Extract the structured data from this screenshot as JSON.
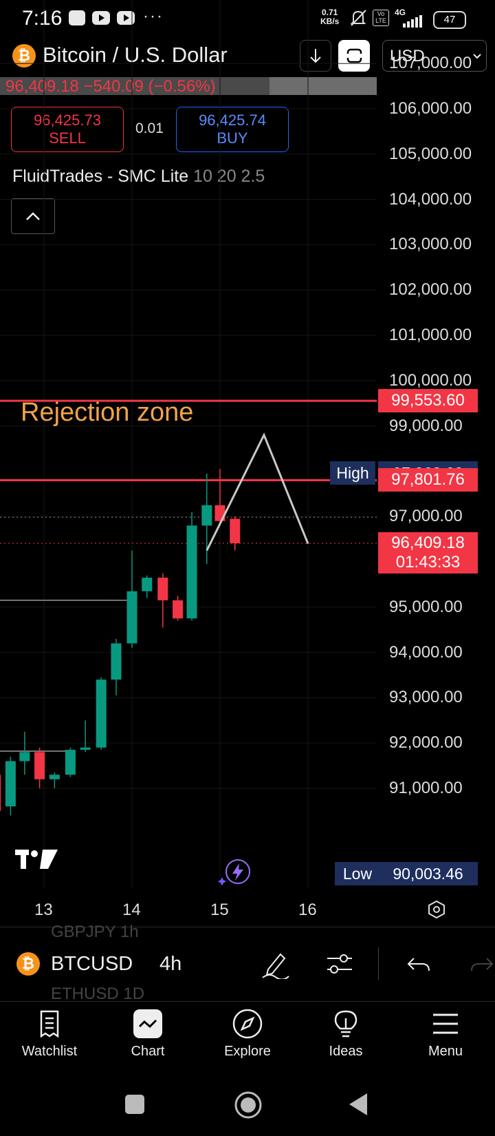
{
  "status_bar": {
    "time": "7:16",
    "dots": "···",
    "net_speed_value": "0.71",
    "net_speed_unit": "KB/s",
    "network": "4G",
    "battery": "47"
  },
  "header": {
    "title": "Bitcoin / U.S. Dollar",
    "currency": "USD",
    "ticker_line": "96,409.18  −540.09 (−0.56%)"
  },
  "trade": {
    "sell_price": "96,425.73",
    "sell_label": "SELL",
    "lot": "0.01",
    "buy_price": "96,425.74",
    "buy_label": "BUY"
  },
  "indicator": {
    "name": "FluidTrades - SMC Lite",
    "params": "10 20 2.5"
  },
  "chart_data": {
    "type": "candlestick",
    "symbol": "BTCUSD",
    "interval": "4h",
    "y_ticks": [
      "107,000.00",
      "106,000.00",
      "105,000.00",
      "104,000.00",
      "103,000.00",
      "102,000.00",
      "101,000.00",
      "100,000.00",
      "99,000.00",
      "97,000.00",
      "95,000.00",
      "94,000.00",
      "93,000.00",
      "92,000.00",
      "91,000.00"
    ],
    "x_ticks": [
      "13",
      "14",
      "15",
      "16"
    ],
    "ylim": [
      89600,
      107600
    ],
    "price_labels": {
      "resistance_1": "99,553.60",
      "resistance_2": "97,801.76",
      "last_price": "96,409.18",
      "countdown": "01:43:33",
      "high_tag": "High",
      "high_value": "97,963.62",
      "low_tag": "Low",
      "low_value": "90,003.46"
    },
    "annotation": "Rejection zone",
    "horizontal_lines": [
      {
        "price": 99553.6,
        "color": "#f23645"
      },
      {
        "price": 97801.76,
        "color": "#f23645"
      },
      {
        "price": 96409.18,
        "color": "#f23645",
        "style": "dotted"
      },
      {
        "price": 96984,
        "color": "#888888",
        "style": "dotted"
      }
    ],
    "candles": [
      {
        "t": 12.45,
        "o": 91300,
        "h": 91500,
        "l": 90500,
        "c": 90500
      },
      {
        "t": 12.62,
        "o": 90600,
        "h": 91700,
        "l": 90400,
        "c": 91600
      },
      {
        "t": 12.78,
        "o": 91600,
        "h": 92250,
        "l": 91300,
        "c": 91800
      },
      {
        "t": 12.95,
        "o": 91800,
        "h": 91900,
        "l": 91000,
        "c": 91200
      },
      {
        "t": 13.12,
        "o": 91200,
        "h": 91350,
        "l": 91000,
        "c": 91300
      },
      {
        "t": 13.3,
        "o": 91300,
        "h": 91900,
        "l": 91250,
        "c": 91850
      },
      {
        "t": 13.47,
        "o": 91850,
        "h": 92500,
        "l": 91800,
        "c": 91900
      },
      {
        "t": 13.65,
        "o": 91900,
        "h": 93450,
        "l": 91850,
        "c": 93400
      },
      {
        "t": 13.82,
        "o": 93400,
        "h": 94300,
        "l": 93050,
        "c": 94200
      },
      {
        "t": 14.0,
        "o": 94200,
        "h": 96250,
        "l": 94100,
        "c": 95350
      },
      {
        "t": 14.17,
        "o": 95350,
        "h": 95700,
        "l": 95200,
        "c": 95650
      },
      {
        "t": 14.35,
        "o": 95650,
        "h": 95750,
        "l": 94550,
        "c": 95150
      },
      {
        "t": 14.52,
        "o": 95150,
        "h": 95250,
        "l": 94700,
        "c": 94750
      },
      {
        "t": 14.68,
        "o": 94750,
        "h": 97100,
        "l": 94700,
        "c": 96800
      },
      {
        "t": 14.85,
        "o": 96800,
        "h": 97950,
        "l": 95950,
        "c": 97250
      },
      {
        "t": 15.0,
        "o": 97250,
        "h": 98050,
        "l": 96800,
        "c": 96900
      },
      {
        "t": 15.17,
        "o": 96950,
        "h": 97000,
        "l": 96250,
        "c": 96409
      }
    ],
    "drawn_path": [
      {
        "t": 14.85,
        "p": 96250
      },
      {
        "t": 15.5,
        "p": 98800
      },
      {
        "t": 16.0,
        "p": 96400
      }
    ],
    "support_lines": [
      {
        "price": 95150,
        "t_end": 13.97
      },
      {
        "price": 91820,
        "t_end": 13.3
      }
    ],
    "colors": {
      "up": "#089981",
      "down": "#f23645"
    }
  },
  "toolbar": {
    "symbol": "BTCUSD",
    "interval": "4h",
    "ghost_prev": "GBPJPY   1h",
    "ghost_next": "ETHUSD   1D"
  },
  "nav": [
    {
      "label": "Watchlist",
      "icon": "watchlist-icon"
    },
    {
      "label": "Chart",
      "icon": "chart-icon"
    },
    {
      "label": "Explore",
      "icon": "compass-icon"
    },
    {
      "label": "Ideas",
      "icon": "lightbulb-icon"
    },
    {
      "label": "Menu",
      "icon": "hamburger-icon"
    }
  ]
}
